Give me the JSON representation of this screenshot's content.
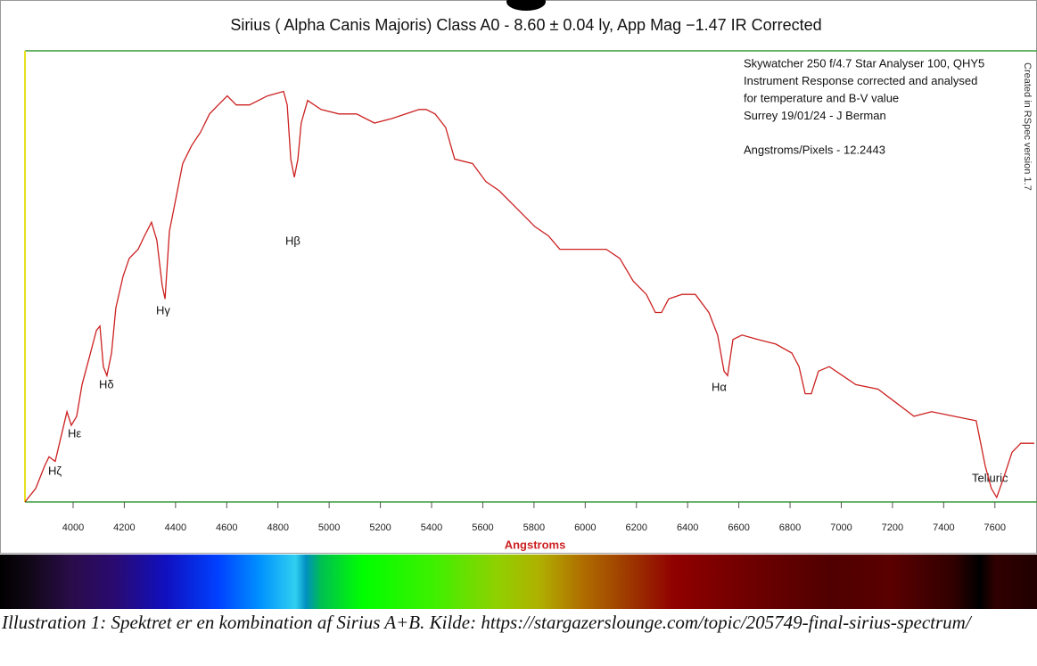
{
  "chart_data": {
    "type": "line",
    "title": "Sirius ( Alpha Canis Majoris) Class A0 - 8.60 ± 0.04 ly, App Mag −1.47 IR Corrected",
    "x_label": "Angstroms",
    "info_lines": [
      "Skywatcher 250 f/4.7 Star Analyser 100, QHY5",
      "Instrument Response corrected and analysed",
      "for temperature and B-V value",
      "Surrey 19/01/24 - J Berman",
      "Angstroms/Pixels - 12.2443"
    ],
    "side_note": "Created in RSpec version 1.7",
    "annotations": [
      "Hζ",
      "Hε",
      "Hδ",
      "Hγ",
      "Hβ",
      "Hα",
      "Telluric"
    ],
    "color": "#cc2020",
    "xlim": [
      3812,
      7754
    ],
    "ylim": [
      0,
      1
    ],
    "xticks": [
      4000,
      4200,
      4400,
      4600,
      4800,
      5000,
      5200,
      5400,
      5600,
      5800,
      6000,
      6200,
      6400,
      6600,
      6800,
      7000,
      7200,
      7400,
      7600
    ],
    "x": [
      3812,
      3854,
      3889,
      3906,
      3930,
      3951,
      3976,
      3993,
      4014,
      4035,
      4063,
      4091,
      4105,
      4118,
      4132,
      4150,
      4167,
      4195,
      4219,
      4254,
      4279,
      4306,
      4327,
      4348,
      4359,
      4376,
      4404,
      4428,
      4463,
      4498,
      4533,
      4567,
      4602,
      4637,
      4689,
      4759,
      4822,
      4836,
      4850,
      4864,
      4878,
      4891,
      4916,
      4968,
      5038,
      5107,
      5177,
      5246,
      5299,
      5351,
      5379,
      5414,
      5455,
      5490,
      5560,
      5612,
      5664,
      5734,
      5804,
      5856,
      5901,
      5943,
      6013,
      6082,
      6135,
      6187,
      6239,
      6274,
      6298,
      6326,
      6378,
      6430,
      6483,
      6517,
      6542,
      6556,
      6577,
      6612,
      6674,
      6744,
      6807,
      6835,
      6859,
      6883,
      6911,
      6953,
      7005,
      7057,
      7144,
      7214,
      7284,
      7353,
      7440,
      7527,
      7562,
      7586,
      7607,
      7632,
      7667,
      7701,
      7754
    ],
    "values": [
      0,
      0.03,
      0.08,
      0.1,
      0.09,
      0.14,
      0.2,
      0.17,
      0.19,
      0.26,
      0.32,
      0.38,
      0.39,
      0.3,
      0.28,
      0.33,
      0.43,
      0.5,
      0.54,
      0.56,
      0.59,
      0.62,
      0.58,
      0.48,
      0.45,
      0.6,
      0.68,
      0.75,
      0.79,
      0.82,
      0.86,
      0.88,
      0.9,
      0.88,
      0.88,
      0.9,
      0.91,
      0.88,
      0.76,
      0.72,
      0.76,
      0.84,
      0.89,
      0.87,
      0.86,
      0.86,
      0.84,
      0.85,
      0.86,
      0.87,
      0.87,
      0.86,
      0.83,
      0.76,
      0.75,
      0.71,
      0.69,
      0.65,
      0.61,
      0.59,
      0.56,
      0.56,
      0.56,
      0.56,
      0.54,
      0.49,
      0.46,
      0.42,
      0.42,
      0.45,
      0.46,
      0.46,
      0.42,
      0.37,
      0.29,
      0.28,
      0.36,
      0.37,
      0.36,
      0.35,
      0.33,
      0.3,
      0.24,
      0.24,
      0.29,
      0.3,
      0.28,
      0.26,
      0.25,
      0.22,
      0.19,
      0.2,
      0.19,
      0.18,
      0.08,
      0.03,
      0.01,
      0.05,
      0.11,
      0.13,
      0.13
    ]
  },
  "caption": "Illustration 1: Spektret er en kombination af Sirius A+B. Kilde: https://stargazerslounge.com/topic/205749-final-sirius-spectrum/"
}
